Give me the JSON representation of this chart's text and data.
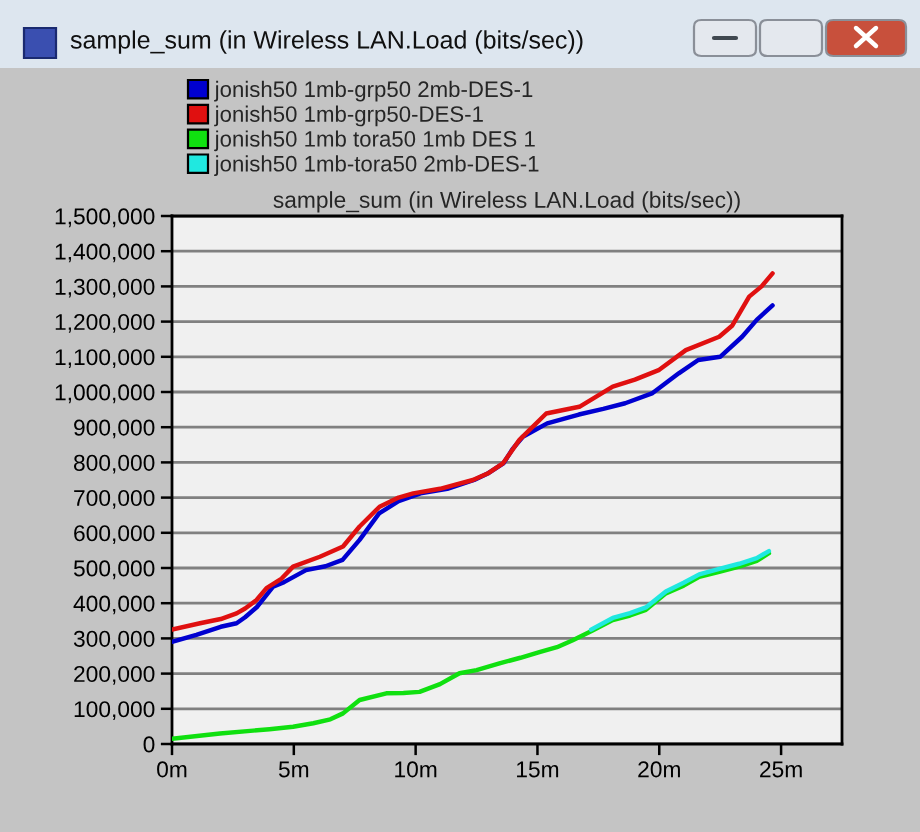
{
  "chart_data": {
    "type": "line",
    "title": "sample_sum (in Wireless LAN.Load (bits/sec))",
    "subtitle": "sample_sum (in Wireless LAN.Load (bits/sec))",
    "xlim": [
      0,
      27.5
    ],
    "xticks": [
      {
        "value": 0,
        "label": "0m"
      },
      {
        "value": 5,
        "label": "5m"
      },
      {
        "value": 10,
        "label": "10m"
      },
      {
        "value": 15,
        "label": "15m"
      },
      {
        "value": 20,
        "label": "20m"
      },
      {
        "value": 25,
        "label": "25m"
      }
    ],
    "ylim": [
      0,
      1500000
    ],
    "yticks": [
      0,
      {
        "value": 100000,
        "label": "100,000"
      },
      {
        "value": 200000,
        "label": "200,000"
      },
      {
        "value": 300000,
        "label": "300,000"
      },
      {
        "value": 400000,
        "label": "400,000"
      },
      {
        "value": 500000,
        "label": "500,000"
      },
      {
        "value": 600000,
        "label": "600,000"
      },
      {
        "value": 700000,
        "label": "700,000"
      },
      {
        "value": 800000,
        "label": "800,000"
      },
      {
        "value": 900000,
        "label": "900,000"
      },
      {
        "value": 1000000,
        "label": "1,000,000"
      },
      {
        "value": 1100000,
        "label": "1,100,000"
      },
      {
        "value": 1200000,
        "label": "1,200,000"
      },
      {
        "value": 1300000,
        "label": "1,300,000"
      },
      {
        "value": 1400000,
        "label": "1,400,000"
      },
      {
        "value": 1500000,
        "label": "1,500,000"
      }
    ],
    "grid": "y",
    "legend": "top",
    "line_style": "solid",
    "series": [
      {
        "name": "jonish50 1mb-grp50 2mb-DES-1",
        "color": "#0000d0",
        "x": [
          0,
          1.0,
          2.0,
          2.65,
          3.0,
          3.5,
          4.15,
          4.6,
          5.5,
          6.3,
          7.0,
          7.7,
          8.5,
          9.3,
          10.2,
          11.3,
          12.4,
          13.0,
          13.6,
          14.0,
          14.4,
          15.4,
          16.7,
          17.7,
          18.6,
          19.7,
          20.8,
          21.6,
          22.5,
          23.4,
          24.0,
          24.65
        ],
        "values": [
          290000,
          310000,
          333000,
          343000,
          360000,
          390000,
          447000,
          460000,
          494000,
          505000,
          523000,
          580000,
          655000,
          690000,
          712000,
          725000,
          750000,
          770000,
          797000,
          840000,
          873000,
          911000,
          936000,
          952000,
          968000,
          996000,
          1053000,
          1091000,
          1100000,
          1157000,
          1205000,
          1246000
        ]
      },
      {
        "name": "jonish50 1mb-grp50-DES-1",
        "color": "#e01010",
        "x": [
          0,
          1.15,
          2.0,
          2.65,
          3.0,
          3.47,
          3.88,
          4.5,
          4.97,
          6.07,
          7.02,
          7.7,
          8.52,
          9.3,
          9.9,
          11.0,
          12.35,
          13.0,
          13.58,
          14.26,
          15.36,
          16.72,
          18.09,
          19.0,
          20.0,
          21.09,
          22.46,
          23.0,
          23.69,
          24.2,
          24.65
        ],
        "values": [
          325000,
          343000,
          355000,
          371000,
          385000,
          409000,
          443000,
          470000,
          504000,
          532000,
          561000,
          618000,
          674000,
          700000,
          712000,
          725000,
          750000,
          770000,
          797000,
          864000,
          939000,
          958000,
          1015000,
          1035000,
          1063000,
          1119000,
          1157000,
          1189000,
          1271000,
          1300000,
          1337000
        ]
      },
      {
        "name": "jonish50 1mb tora50 1mb DES 1",
        "color": "#10e010",
        "x": [
          0,
          1.97,
          4.0,
          4.97,
          5.8,
          6.5,
          7.02,
          7.7,
          8.8,
          9.5,
          10.16,
          11.0,
          11.8,
          12.5,
          13.44,
          14.3,
          15.08,
          15.8,
          16.45,
          17.2,
          18.09,
          18.8,
          19.45,
          20.27,
          21.0,
          21.64,
          22.5,
          23.28,
          24.0,
          24.5
        ],
        "values": [
          15000,
          30000,
          42000,
          49000,
          59000,
          70000,
          87000,
          125000,
          144000,
          145000,
          148000,
          170000,
          201000,
          210000,
          229000,
          245000,
          261000,
          275000,
          295000,
          320000,
          352000,
          365000,
          381000,
          428000,
          450000,
          475000,
          490000,
          504000,
          520000,
          542000
        ]
      },
      {
        "name": "jonish50 1mb-tora50 2mb-DES-1",
        "color": "#20e8e0",
        "x": [
          17.2,
          18.09,
          18.8,
          19.45,
          20.27,
          21.0,
          21.64,
          22.5,
          23.28,
          24.0,
          24.5
        ],
        "values": [
          325000,
          358000,
          372000,
          388000,
          433000,
          458000,
          482000,
          498000,
          512000,
          528000,
          548000
        ]
      }
    ]
  }
}
